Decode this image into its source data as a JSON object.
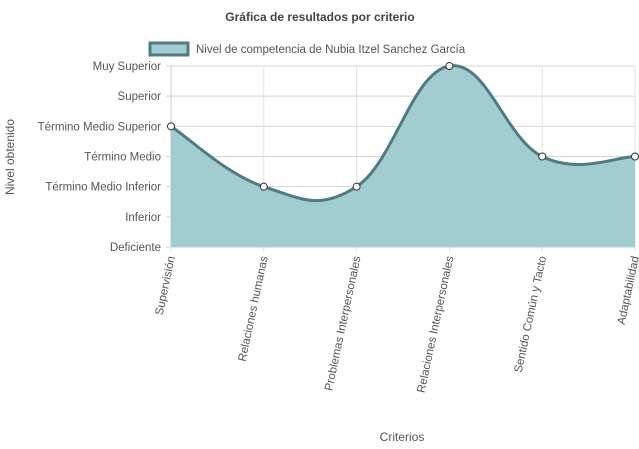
{
  "chart_data": {
    "type": "area",
    "title": "Gráfica de resultados por criterio",
    "xlabel": "Criterios",
    "ylabel": "Nivel obtenido",
    "legend_position": "top",
    "grid": true,
    "y_levels": [
      "Deficiente",
      "Inferior",
      "Término Medio Inferior",
      "Término Medio",
      "Término Medio Superior",
      "Superior",
      "Muy Superior"
    ],
    "ylim": [
      0,
      6
    ],
    "categories": [
      "Supervisión",
      "Relaciones humanas",
      "Problemas Interpersonales",
      "Relaciones Interpersonales",
      "Sentido Común y Tacto",
      "Adaptabilidad"
    ],
    "series": [
      {
        "name": "Nivel de competencia de Nubia Itzel Sanchez García",
        "values": [
          4,
          2,
          2,
          6,
          3,
          3
        ],
        "fill_color": "#a1cdd0",
        "line_color": "#4f7b82"
      }
    ]
  }
}
